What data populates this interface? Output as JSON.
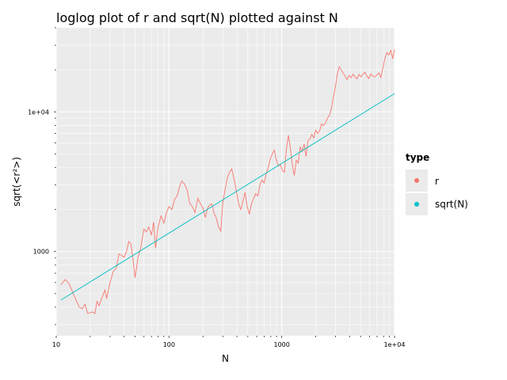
{
  "chart_data": {
    "type": "line",
    "title": "loglog plot of r and sqrt(N) plotted against N",
    "xlabel": "N",
    "ylabel": "sqrt(<r²>)",
    "x_scale": "log10",
    "y_scale": "log10",
    "xlim": [
      10,
      10000
    ],
    "ylim": [
      250,
      40000
    ],
    "x_ticks": [
      {
        "value": 10,
        "label": "10"
      },
      {
        "value": 100,
        "label": "100"
      },
      {
        "value": 1000,
        "label": "1000"
      },
      {
        "value": 10000,
        "label": "1e+04"
      }
    ],
    "y_ticks": [
      {
        "value": 1000,
        "label": "1000"
      },
      {
        "value": 10000,
        "label": "1e+04"
      }
    ],
    "grid": true,
    "legend": {
      "title": "type",
      "position": "right",
      "entries": [
        {
          "label": "r",
          "color": "#F8766D"
        },
        {
          "label": "sqrt(N)",
          "color": "#00BFC4"
        }
      ]
    },
    "series": [
      {
        "name": "r",
        "color": "#F8766D",
        "points": [
          [
            11,
            580
          ],
          [
            12,
            630
          ],
          [
            13,
            590
          ],
          [
            14,
            510
          ],
          [
            15,
            450
          ],
          [
            16,
            400
          ],
          [
            17,
            390
          ],
          [
            18,
            420
          ],
          [
            19,
            360
          ],
          [
            20,
            365
          ],
          [
            21,
            370
          ],
          [
            22,
            360
          ],
          [
            23,
            440
          ],
          [
            24,
            410
          ],
          [
            26,
            490
          ],
          [
            27,
            530
          ],
          [
            28,
            460
          ],
          [
            30,
            600
          ],
          [
            32,
            720
          ],
          [
            34,
            760
          ],
          [
            36,
            960
          ],
          [
            38,
            940
          ],
          [
            40,
            910
          ],
          [
            42,
            1000
          ],
          [
            44,
            1180
          ],
          [
            46,
            1130
          ],
          [
            48,
            880
          ],
          [
            50,
            650
          ],
          [
            53,
            900
          ],
          [
            56,
            1050
          ],
          [
            60,
            1450
          ],
          [
            63,
            1380
          ],
          [
            66,
            1500
          ],
          [
            70,
            1320
          ],
          [
            73,
            1620
          ],
          [
            76,
            1060
          ],
          [
            80,
            1500
          ],
          [
            85,
            1800
          ],
          [
            90,
            1600
          ],
          [
            95,
            1900
          ],
          [
            100,
            2100
          ],
          [
            106,
            2000
          ],
          [
            112,
            2350
          ],
          [
            118,
            2500
          ],
          [
            124,
            2900
          ],
          [
            130,
            3200
          ],
          [
            137,
            3050
          ],
          [
            145,
            2750
          ],
          [
            153,
            2200
          ],
          [
            161,
            2100
          ],
          [
            170,
            1900
          ],
          [
            180,
            2400
          ],
          [
            190,
            2200
          ],
          [
            200,
            2050
          ],
          [
            210,
            1750
          ],
          [
            220,
            2050
          ],
          [
            230,
            2150
          ],
          [
            240,
            2200
          ],
          [
            250,
            1900
          ],
          [
            262,
            1750
          ],
          [
            275,
            1500
          ],
          [
            288,
            1400
          ],
          [
            300,
            2250
          ],
          [
            315,
            2800
          ],
          [
            330,
            3400
          ],
          [
            345,
            3700
          ],
          [
            360,
            3900
          ],
          [
            378,
            3300
          ],
          [
            396,
            2700
          ],
          [
            414,
            2200
          ],
          [
            433,
            2000
          ],
          [
            453,
            2300
          ],
          [
            473,
            2650
          ],
          [
            494,
            2100
          ],
          [
            516,
            1850
          ],
          [
            539,
            2200
          ],
          [
            563,
            2400
          ],
          [
            588,
            2600
          ],
          [
            614,
            2500
          ],
          [
            641,
            3000
          ],
          [
            669,
            3250
          ],
          [
            698,
            3100
          ],
          [
            728,
            3600
          ],
          [
            759,
            4000
          ],
          [
            791,
            4600
          ],
          [
            825,
            5000
          ],
          [
            860,
            5300
          ],
          [
            896,
            4500
          ],
          [
            934,
            4100
          ],
          [
            973,
            4200
          ],
          [
            1013,
            3800
          ],
          [
            1055,
            3700
          ],
          [
            1099,
            5400
          ],
          [
            1145,
            6800
          ],
          [
            1192,
            5500
          ],
          [
            1241,
            4200
          ],
          [
            1292,
            3500
          ],
          [
            1345,
            4500
          ],
          [
            1400,
            4300
          ],
          [
            1457,
            5600
          ],
          [
            1517,
            5200
          ],
          [
            1578,
            5900
          ],
          [
            1642,
            4800
          ],
          [
            1708,
            6200
          ],
          [
            1777,
            6400
          ],
          [
            1849,
            6900
          ],
          [
            1924,
            6500
          ],
          [
            2001,
            7400
          ],
          [
            2082,
            7000
          ],
          [
            2167,
            7300
          ],
          [
            2254,
            8200
          ],
          [
            2346,
            8000
          ],
          [
            2441,
            8300
          ],
          [
            2541,
            9000
          ],
          [
            2644,
            9400
          ],
          [
            2752,
            10500
          ],
          [
            2865,
            12600
          ],
          [
            2982,
            14800
          ],
          [
            3104,
            18500
          ],
          [
            3231,
            21000
          ],
          [
            3364,
            20000
          ],
          [
            3502,
            19000
          ],
          [
            3646,
            18000
          ],
          [
            3796,
            17000
          ],
          [
            3953,
            18200
          ],
          [
            4116,
            17500
          ],
          [
            4286,
            18600
          ],
          [
            4463,
            17800
          ],
          [
            4647,
            17200
          ],
          [
            4839,
            18500
          ],
          [
            5039,
            17800
          ],
          [
            5248,
            18600
          ],
          [
            5465,
            19200
          ],
          [
            5691,
            18000
          ],
          [
            5927,
            17300
          ],
          [
            6173,
            18700
          ],
          [
            6429,
            17900
          ],
          [
            6695,
            17800
          ],
          [
            6973,
            18300
          ],
          [
            7262,
            19000
          ],
          [
            7563,
            17600
          ],
          [
            7877,
            20500
          ],
          [
            8204,
            24000
          ],
          [
            8545,
            26500
          ],
          [
            8900,
            25500
          ],
          [
            9270,
            27500
          ],
          [
            9655,
            24000
          ],
          [
            10000,
            28000
          ]
        ]
      },
      {
        "name": "sqrt(N)",
        "color": "#00BFC4",
        "points": [
          [
            11,
            450
          ],
          [
            10000,
            13500
          ]
        ]
      }
    ]
  }
}
